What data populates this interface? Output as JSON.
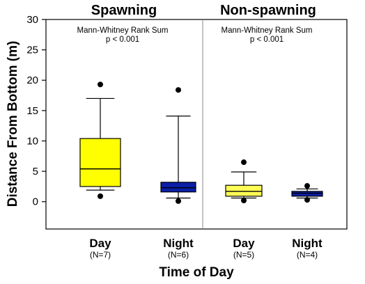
{
  "chart_data": {
    "type": "box",
    "ylabel": "Distance From Bottom (m)",
    "xlabel": "Time of Day",
    "ylim": [
      -4.5,
      30
    ],
    "yticks": [
      "0",
      "5",
      "10",
      "15",
      "20",
      "25",
      "30"
    ],
    "grid": false,
    "panels": [
      {
        "title": "Spawning",
        "stat_lines": [
          "Mann-Whitney Rank Sum",
          "p < 0.001"
        ],
        "groups": [
          {
            "label": "Day",
            "n_label": "(N=7)",
            "color": "#ffff00",
            "whisker_low": 1.9,
            "q1": 2.5,
            "median": 5.4,
            "q3": 10.4,
            "whisker_high": 17.0,
            "outliers": [
              0.9,
              19.3
            ]
          },
          {
            "label": "Night",
            "n_label": "(N=6)",
            "color": "#0a1fa8",
            "whisker_low": 0.6,
            "q1": 1.6,
            "median": 2.3,
            "q3": 3.2,
            "whisker_high": 14.1,
            "outliers": [
              0.1,
              18.4
            ]
          }
        ]
      },
      {
        "title": "Non-spawning",
        "stat_lines": [
          "Mann-Whitney Rank Sum",
          "p < 0.001"
        ],
        "groups": [
          {
            "label": "Day",
            "n_label": "(N=5)",
            "color": "#ffff55",
            "whisker_low": 0.6,
            "q1": 0.9,
            "median": 1.7,
            "q3": 2.7,
            "whisker_high": 4.9,
            "outliers": [
              0.2,
              6.5
            ]
          },
          {
            "label": "Night",
            "n_label": "(N=4)",
            "color": "#0a1fa8",
            "whisker_low": 0.6,
            "q1": 0.9,
            "median": 1.4,
            "q3": 1.7,
            "whisker_high": 2.1,
            "outliers": [
              0.3,
              2.6
            ]
          }
        ]
      }
    ]
  }
}
